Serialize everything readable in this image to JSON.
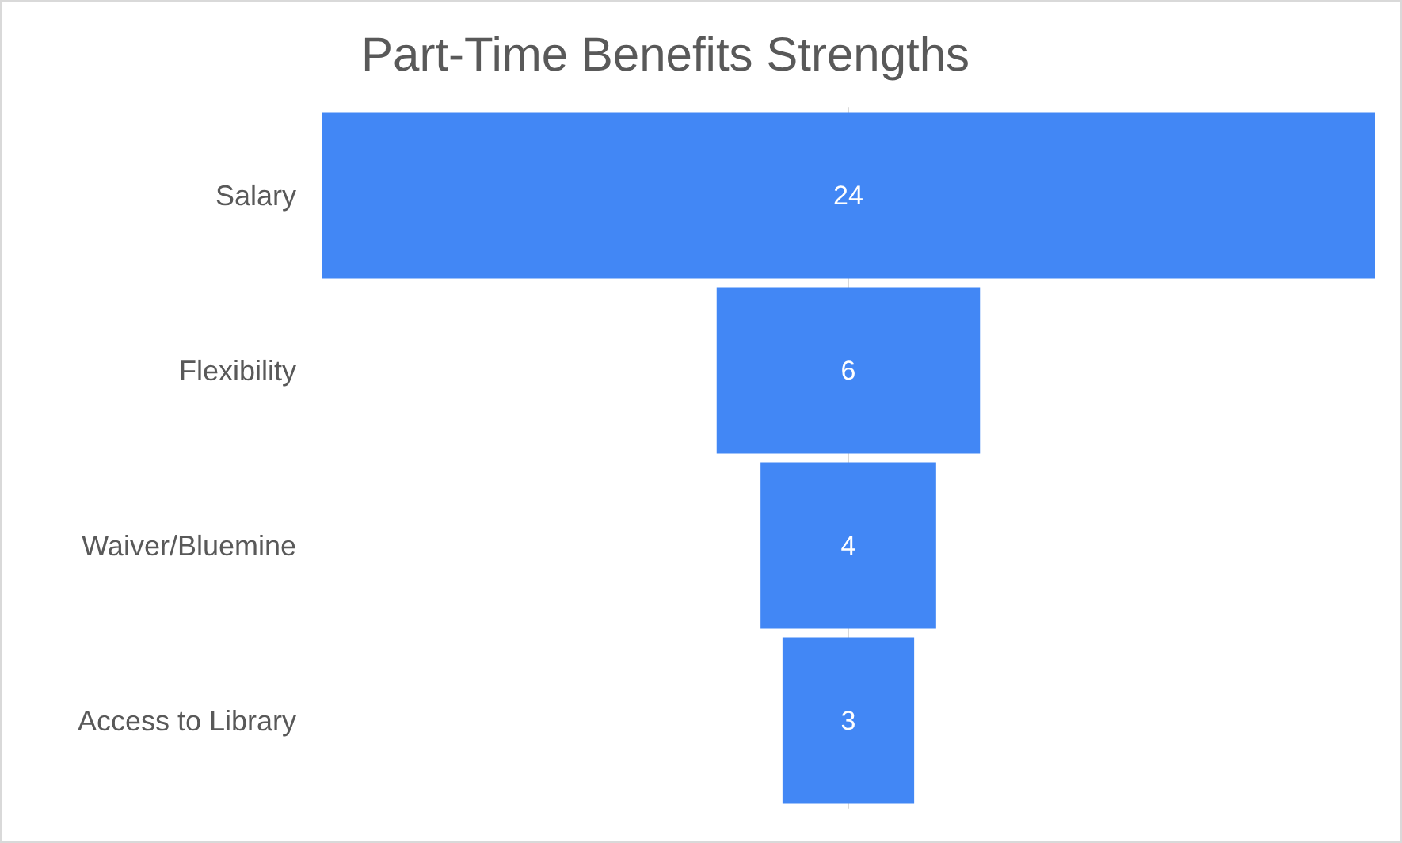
{
  "chart_data": {
    "type": "other",
    "title": "Part-Time Benefits Strengths",
    "categories": [
      "Salary",
      "Flexibility",
      "Waiver/Bluemine",
      "Access to Library"
    ],
    "values": [
      24,
      6,
      4,
      3
    ],
    "color": "#4287f5",
    "data_labels": true
  }
}
